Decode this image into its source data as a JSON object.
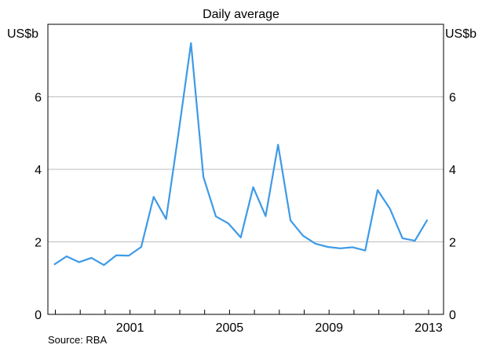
{
  "chart_data": {
    "type": "line",
    "title": "",
    "subtitle": "Daily average",
    "unit_left": "US$b",
    "unit_right": "US$b",
    "source": "Source: RBA",
    "ylim": [
      0,
      8
    ],
    "yticks": [
      0,
      2,
      4,
      6
    ],
    "xlim": [
      1997.7,
      2013.6
    ],
    "xticks": [
      2001,
      2005,
      2009,
      2013
    ],
    "x_minor_ticks": [
      1998,
      1999,
      2000,
      2001,
      2002,
      2003,
      2004,
      2005,
      2006,
      2007,
      2008,
      2009,
      2010,
      2011,
      2012,
      2013
    ],
    "grid": true,
    "line_color": "#3d9ae8",
    "series": [
      {
        "x": [
          1997.95,
          1998.45,
          1998.95,
          1999.45,
          1999.95,
          2000.45,
          2000.95,
          2001.45,
          2001.95,
          2002.45,
          2002.95,
          2003.45,
          2003.95,
          2004.45,
          2004.95,
          2005.45,
          2005.95,
          2006.45,
          2006.95,
          2007.45,
          2007.95,
          2008.45,
          2008.95,
          2009.45,
          2009.95,
          2010.45,
          2010.95,
          2011.45,
          2011.95,
          2012.45,
          2012.95
        ],
        "y": [
          1.37,
          1.6,
          1.44,
          1.56,
          1.36,
          1.63,
          1.62,
          1.86,
          3.24,
          2.63,
          5.0,
          7.48,
          3.79,
          2.7,
          2.51,
          2.12,
          3.51,
          2.71,
          4.68,
          2.59,
          2.17,
          1.95,
          1.86,
          1.82,
          1.85,
          1.76,
          3.43,
          2.91,
          2.1,
          2.03,
          2.61
        ]
      }
    ]
  }
}
